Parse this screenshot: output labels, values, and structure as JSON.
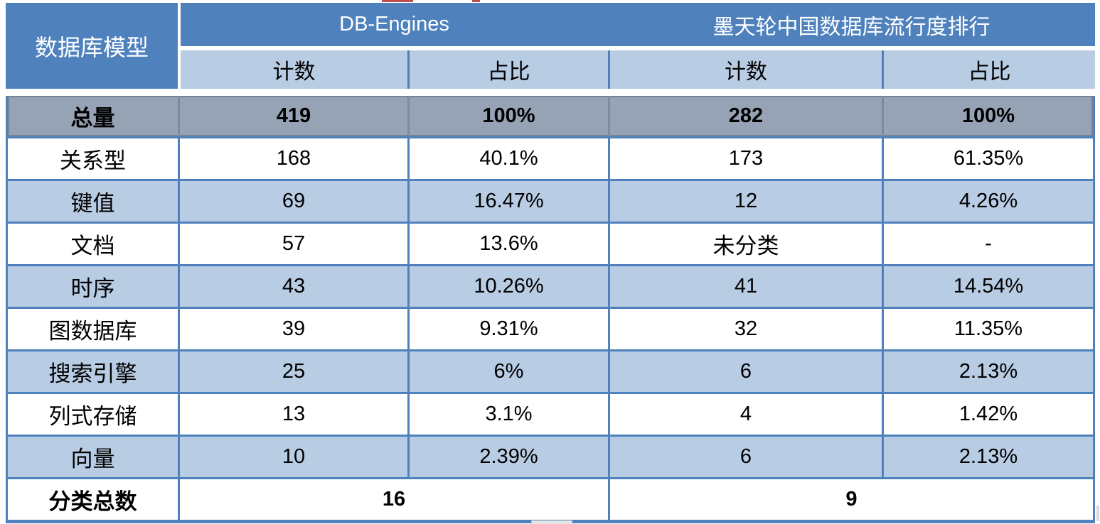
{
  "colors": {
    "header_blue": "#4f81bd",
    "light_blue_fill": "#b8cce4",
    "total_row_gray": "#96a3b4",
    "border_blue": "#4f81bd",
    "header_text": "#ffffff",
    "body_text": "#000000",
    "artifact_red": "#c0504d"
  },
  "artifacts": {
    "top_red_marks": "bottom edge of cropped red text above table",
    "bottom_scrollbar_fragment": "small gray scrollbar fragment below table"
  },
  "chart_data": {
    "type": "table",
    "corner_header": "数据库模型",
    "column_groups": [
      {
        "label": "DB-Engines",
        "sub_columns": [
          "计数",
          "占比"
        ]
      },
      {
        "label": "墨天轮中国数据库流行度排行",
        "sub_columns": [
          "计数",
          "占比"
        ]
      }
    ],
    "sub_columns": [
      "计数",
      "占比",
      "计数",
      "占比"
    ],
    "rows": [
      {
        "label": "总量",
        "values": [
          "419",
          "100%",
          "282",
          "100%"
        ]
      },
      {
        "label": "关系型",
        "values": [
          "168",
          "40.1%",
          "173",
          "61.35%"
        ]
      },
      {
        "label": "键值",
        "values": [
          "69",
          "16.47%",
          "12",
          "4.26%"
        ]
      },
      {
        "label": "文档",
        "values": [
          "57",
          "13.6%",
          "未分类",
          "-"
        ]
      },
      {
        "label": "时序",
        "values": [
          "43",
          "10.26%",
          "41",
          "14.54%"
        ]
      },
      {
        "label": "图数据库",
        "values": [
          "39",
          "9.31%",
          "32",
          "11.35%"
        ]
      },
      {
        "label": "搜索引擎",
        "values": [
          "25",
          "6%",
          "6",
          "2.13%"
        ]
      },
      {
        "label": "列式存储",
        "values": [
          "13",
          "3.1%",
          "4",
          "1.42%"
        ]
      },
      {
        "label": "向量",
        "values": [
          "10",
          "2.39%",
          "6",
          "2.13%"
        ]
      }
    ],
    "footer": {
      "label": "分类总数",
      "db_engines_total": "16",
      "modb_total": "9"
    }
  }
}
